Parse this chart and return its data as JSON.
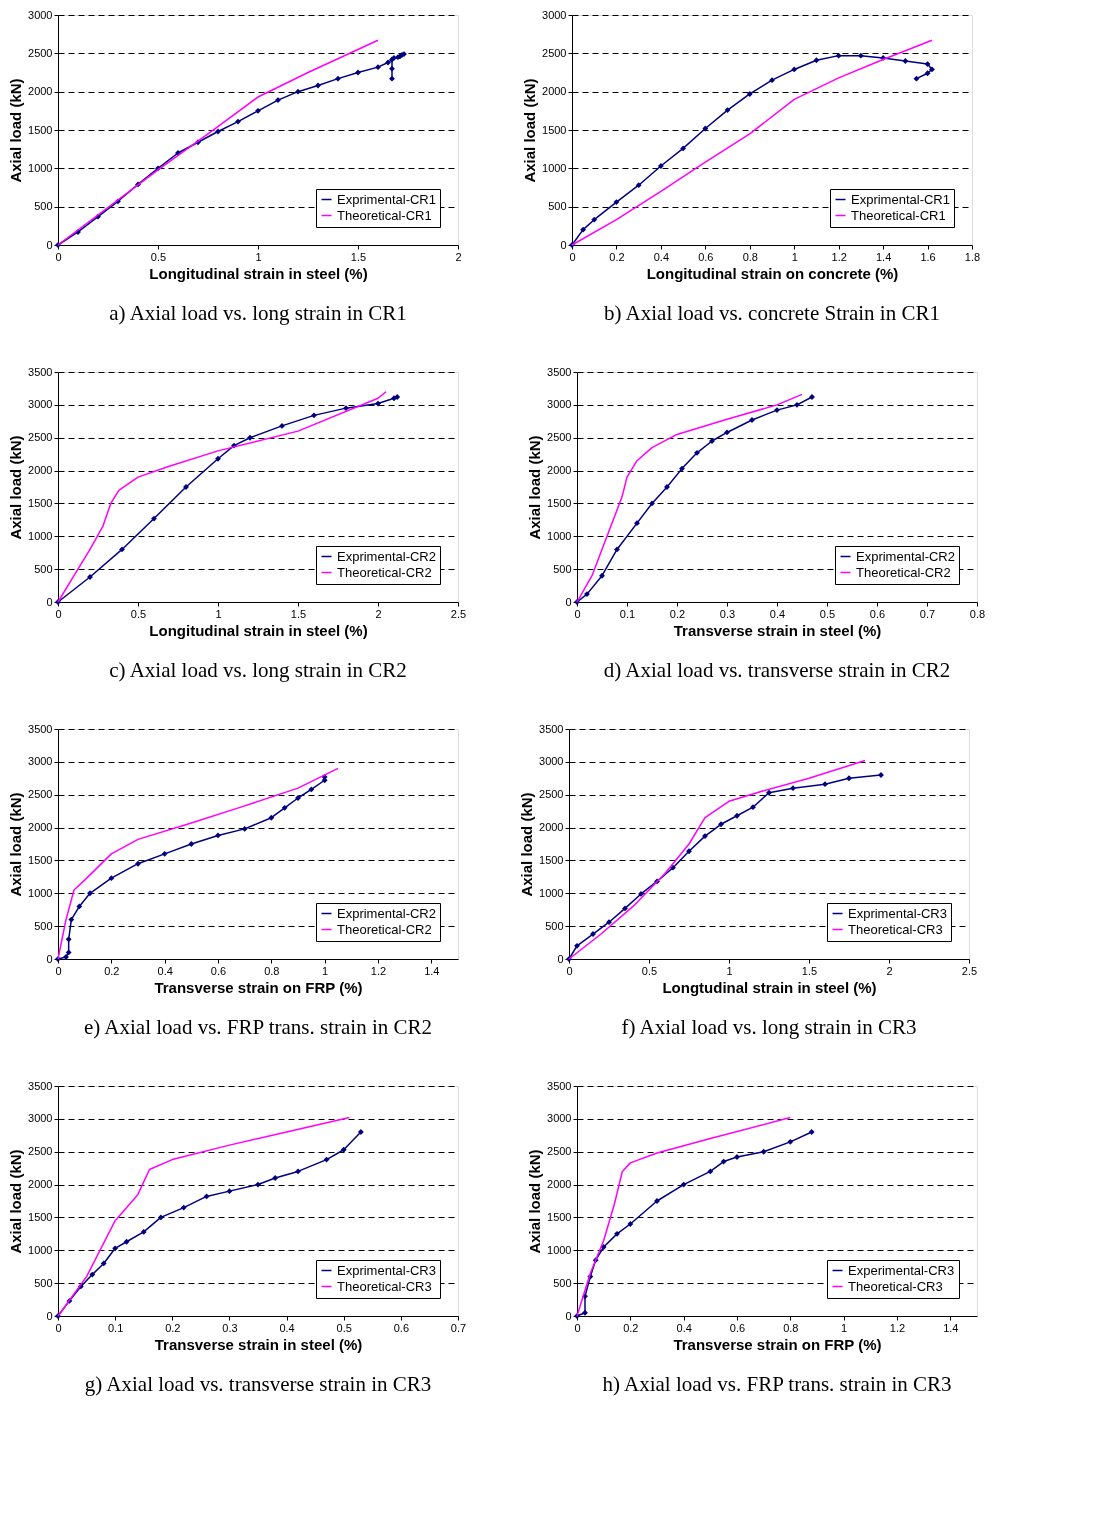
{
  "chart_data": [
    {
      "type": "line",
      "title": "a) Axial load vs. long strain in CR1",
      "xlabel": "Longitudinal strain in steel (%)",
      "ylabel": "Axial load (kN)",
      "xlim": [
        0,
        2
      ],
      "xticks": [
        0,
        0.5,
        1,
        1.5,
        2
      ],
      "ylim": [
        0,
        3000
      ],
      "yticks": [
        0,
        500,
        1000,
        1500,
        2000,
        2500,
        3000
      ],
      "grid": "y",
      "legend": "bottom right",
      "series": [
        {
          "name": "Exprimental-CR1",
          "color": "#000080",
          "marker": "diamond",
          "x": [
            0,
            0.1,
            0.2,
            0.3,
            0.4,
            0.5,
            0.6,
            0.7,
            0.8,
            0.9,
            1.0,
            1.1,
            1.2,
            1.3,
            1.4,
            1.5,
            1.6,
            1.65,
            1.68,
            1.7,
            1.72,
            1.73,
            1.71,
            1.67,
            1.67,
            1.67
          ],
          "values": [
            0,
            170,
            370,
            570,
            790,
            1000,
            1200,
            1340,
            1480,
            1610,
            1750,
            1890,
            2000,
            2080,
            2170,
            2250,
            2320,
            2380,
            2440,
            2450,
            2480,
            2490,
            2460,
            2420,
            2300,
            2170
          ]
        },
        {
          "name": "Theoretical-CR1",
          "color": "#ff00ff",
          "marker": "none",
          "x": [
            0,
            0.5,
            0.75,
            1.0,
            1.25,
            1.6
          ],
          "values": [
            0,
            980,
            1450,
            1930,
            2250,
            2670
          ]
        }
      ]
    },
    {
      "type": "line",
      "title": "b) Axial load vs. concrete Strain in CR1",
      "xlabel": "Longitudinal strain on concrete (%)",
      "ylabel": "Axial load (kN)",
      "xlim": [
        0,
        1.8
      ],
      "xticks": [
        0,
        0.2,
        0.4,
        0.6,
        0.8,
        1,
        1.2,
        1.4,
        1.6,
        1.8
      ],
      "ylim": [
        0,
        3000
      ],
      "yticks": [
        0,
        500,
        1000,
        1500,
        2000,
        2500,
        3000
      ],
      "grid": "y",
      "legend": "bottom right",
      "series": [
        {
          "name": "Exprimental-CR1",
          "color": "#000080",
          "marker": "diamond",
          "x": [
            0,
            0.05,
            0.1,
            0.2,
            0.3,
            0.4,
            0.5,
            0.6,
            0.7,
            0.8,
            0.9,
            1.0,
            1.1,
            1.2,
            1.3,
            1.4,
            1.5,
            1.6,
            1.62,
            1.6,
            1.55
          ],
          "values": [
            0,
            200,
            330,
            560,
            780,
            1030,
            1260,
            1520,
            1760,
            1970,
            2150,
            2290,
            2410,
            2470,
            2470,
            2440,
            2400,
            2360,
            2290,
            2240,
            2170
          ]
        },
        {
          "name": "Theoretical-CR1",
          "color": "#ff00ff",
          "marker": "none",
          "x": [
            0,
            0.2,
            0.4,
            0.6,
            0.8,
            1.0,
            1.2,
            1.4,
            1.62
          ],
          "values": [
            0,
            330,
            700,
            1080,
            1450,
            1900,
            2180,
            2420,
            2670
          ]
        }
      ]
    },
    {
      "type": "line",
      "title": "c) Axial load vs. long strain in CR2",
      "xlabel": "Longitudinal strain in steel (%)",
      "ylabel": "Axial load (kN)",
      "xlim": [
        0,
        2.5
      ],
      "xticks": [
        0,
        0.5,
        1,
        1.5,
        2,
        2.5
      ],
      "ylim": [
        0,
        3500
      ],
      "yticks": [
        0,
        500,
        1000,
        1500,
        2000,
        2500,
        3000,
        3500
      ],
      "grid": "y",
      "legend": "bottom right",
      "series": [
        {
          "name": "Exprimental-CR2",
          "color": "#000080",
          "marker": "diamond",
          "x": [
            0,
            0.2,
            0.4,
            0.6,
            0.8,
            1.0,
            1.1,
            1.2,
            1.4,
            1.6,
            1.8,
            2.0,
            2.1,
            2.12
          ],
          "values": [
            0,
            380,
            800,
            1270,
            1750,
            2180,
            2380,
            2500,
            2680,
            2840,
            2950,
            3020,
            3100,
            3120
          ]
        },
        {
          "name": "Theoretical-CR2",
          "color": "#ff00ff",
          "marker": "none",
          "x": [
            0,
            0.1,
            0.2,
            0.28,
            0.33,
            0.38,
            0.5,
            0.7,
            1.0,
            1.5,
            2.0,
            2.05
          ],
          "values": [
            0,
            400,
            800,
            1150,
            1500,
            1700,
            1900,
            2070,
            2300,
            2600,
            3100,
            3200
          ]
        }
      ]
    },
    {
      "type": "line",
      "title": "d) Axial load vs. transverse strain in CR2",
      "xlabel": "Transverse strain in steel (%)",
      "ylabel": "Axial load (kN)",
      "xlim": [
        0,
        0.8
      ],
      "xticks": [
        0,
        0.1,
        0.2,
        0.3,
        0.4,
        0.5,
        0.6,
        0.7,
        0.8
      ],
      "ylim": [
        0,
        3500
      ],
      "yticks": [
        0,
        500,
        1000,
        1500,
        2000,
        2500,
        3000,
        3500
      ],
      "grid": "y",
      "legend": "bottom right",
      "series": [
        {
          "name": "Exprimental-CR2",
          "color": "#000080",
          "marker": "diamond",
          "x": [
            0,
            0.02,
            0.05,
            0.08,
            0.12,
            0.15,
            0.18,
            0.21,
            0.24,
            0.27,
            0.3,
            0.35,
            0.4,
            0.44,
            0.47
          ],
          "values": [
            0,
            120,
            400,
            800,
            1200,
            1500,
            1750,
            2030,
            2270,
            2450,
            2580,
            2770,
            2920,
            3000,
            3120
          ]
        },
        {
          "name": "Theoretical-CR2",
          "color": "#ff00ff",
          "marker": "none",
          "x": [
            0,
            0.03,
            0.06,
            0.09,
            0.1,
            0.12,
            0.15,
            0.2,
            0.3,
            0.4,
            0.45
          ],
          "values": [
            0,
            400,
            1000,
            1600,
            1900,
            2150,
            2350,
            2550,
            2780,
            3000,
            3160
          ]
        }
      ]
    },
    {
      "type": "line",
      "title": "e) Axial load vs. FRP trans. strain in CR2",
      "xlabel": "Transverse strain on FRP (%)",
      "ylabel": "Axial load (kN)",
      "xlim": [
        0,
        1.5
      ],
      "xticks": [
        0,
        0.2,
        0.4,
        0.6,
        0.8,
        1,
        1.2,
        1.4
      ],
      "ylim": [
        0,
        3500
      ],
      "yticks": [
        0,
        500,
        1000,
        1500,
        2000,
        2500,
        3000,
        3500
      ],
      "grid": "y",
      "legend": "bottom right",
      "series": [
        {
          "name": "Exprimental-CR2",
          "color": "#000080",
          "marker": "diamond",
          "x": [
            0,
            0.03,
            0.04,
            0.04,
            0.05,
            0.08,
            0.12,
            0.2,
            0.3,
            0.4,
            0.5,
            0.6,
            0.7,
            0.8,
            0.85,
            0.9,
            0.95,
            1.0,
            1.0
          ],
          "values": [
            0,
            30,
            100,
            300,
            600,
            800,
            1000,
            1230,
            1450,
            1600,
            1750,
            1880,
            1980,
            2150,
            2300,
            2450,
            2580,
            2720,
            2770
          ]
        },
        {
          "name": "Theoretical-CR2",
          "color": "#ff00ff",
          "marker": "none",
          "x": [
            0,
            0.03,
            0.06,
            0.1,
            0.2,
            0.3,
            0.5,
            0.7,
            0.9,
            1.05
          ],
          "values": [
            0,
            600,
            1050,
            1200,
            1600,
            1820,
            2070,
            2330,
            2600,
            2900
          ]
        }
      ]
    },
    {
      "type": "line",
      "title": "f) Axial load vs. long strain in CR3",
      "xlabel": "Longtudinal strain in steel (%)",
      "ylabel": "Axial load (kN)",
      "xlim": [
        0,
        2.5
      ],
      "xticks": [
        0,
        0.5,
        1,
        1.5,
        2,
        2.5
      ],
      "ylim": [
        0,
        3500
      ],
      "yticks": [
        0,
        500,
        1000,
        1500,
        2000,
        2500,
        3000,
        3500
      ],
      "grid": "y",
      "legend": "bottom right",
      "series": [
        {
          "name": "Exprimental-CR3",
          "color": "#000080",
          "marker": "diamond",
          "x": [
            0,
            0.05,
            0.15,
            0.25,
            0.35,
            0.45,
            0.55,
            0.65,
            0.75,
            0.85,
            0.95,
            1.05,
            1.15,
            1.25,
            1.4,
            1.6,
            1.75,
            1.95
          ],
          "values": [
            0,
            200,
            380,
            560,
            770,
            990,
            1180,
            1390,
            1640,
            1870,
            2050,
            2180,
            2310,
            2530,
            2600,
            2660,
            2750,
            2800
          ]
        },
        {
          "name": "Theoretical-CR3",
          "color": "#ff00ff",
          "marker": "none",
          "x": [
            0,
            0.2,
            0.4,
            0.6,
            0.75,
            0.85,
            1.0,
            1.2,
            1.5,
            1.85
          ],
          "values": [
            0,
            380,
            800,
            1300,
            1750,
            2150,
            2400,
            2550,
            2750,
            3020
          ]
        }
      ]
    },
    {
      "type": "line",
      "title": "g) Axial load vs. transverse strain in CR3",
      "xlabel": "Transverse strain in steel (%)",
      "ylabel": "Axial load (kN)",
      "xlim": [
        0,
        0.7
      ],
      "xticks": [
        0,
        0.1,
        0.2,
        0.3,
        0.4,
        0.5,
        0.6,
        0.7
      ],
      "ylim": [
        0,
        3500
      ],
      "yticks": [
        0,
        500,
        1000,
        1500,
        2000,
        2500,
        3000,
        3500
      ],
      "grid": "y",
      "legend": "bottom right",
      "series": [
        {
          "name": "Exprimental-CR3",
          "color": "#000080",
          "marker": "diamond",
          "x": [
            0,
            0.02,
            0.04,
            0.06,
            0.08,
            0.1,
            0.12,
            0.15,
            0.18,
            0.22,
            0.26,
            0.3,
            0.35,
            0.38,
            0.42,
            0.47,
            0.5,
            0.53
          ],
          "values": [
            0,
            230,
            450,
            630,
            800,
            1030,
            1130,
            1280,
            1500,
            1650,
            1820,
            1900,
            2000,
            2100,
            2200,
            2380,
            2530,
            2800
          ]
        },
        {
          "name": "Theoretical-CR3",
          "color": "#ff00ff",
          "marker": "none",
          "x": [
            0,
            0.05,
            0.1,
            0.14,
            0.16,
            0.2,
            0.3,
            0.4,
            0.51
          ],
          "values": [
            0,
            600,
            1450,
            1850,
            2230,
            2380,
            2600,
            2800,
            3020
          ]
        }
      ]
    },
    {
      "type": "line",
      "title": "h) Axial load vs. FRP trans. strain in CR3",
      "xlabel": "Transverse strain on FRP (%)",
      "ylabel": "Axial load (kN)",
      "xlim": [
        0,
        1.5
      ],
      "xticks": [
        0,
        0.2,
        0.4,
        0.6,
        0.8,
        1,
        1.2,
        1.4
      ],
      "ylim": [
        0,
        3500
      ],
      "yticks": [
        0,
        500,
        1000,
        1500,
        2000,
        2500,
        3000,
        3500
      ],
      "grid": "y",
      "legend": "bottom right",
      "series": [
        {
          "name": "Experimental-CR3",
          "color": "#000080",
          "marker": "diamond",
          "x": [
            0,
            0.03,
            0.03,
            0.05,
            0.07,
            0.1,
            0.15,
            0.2,
            0.3,
            0.4,
            0.5,
            0.55,
            0.6,
            0.7,
            0.8,
            0.88
          ],
          "values": [
            0,
            50,
            300,
            600,
            850,
            1050,
            1250,
            1400,
            1750,
            2000,
            2200,
            2350,
            2420,
            2500,
            2650,
            2800
          ]
        },
        {
          "name": "Theoretical-CR3",
          "color": "#ff00ff",
          "marker": "none",
          "x": [
            0,
            0.05,
            0.1,
            0.14,
            0.17,
            0.2,
            0.3,
            0.5,
            0.8
          ],
          "values": [
            0,
            650,
            1150,
            1700,
            2200,
            2330,
            2480,
            2700,
            3020
          ]
        }
      ]
    }
  ]
}
